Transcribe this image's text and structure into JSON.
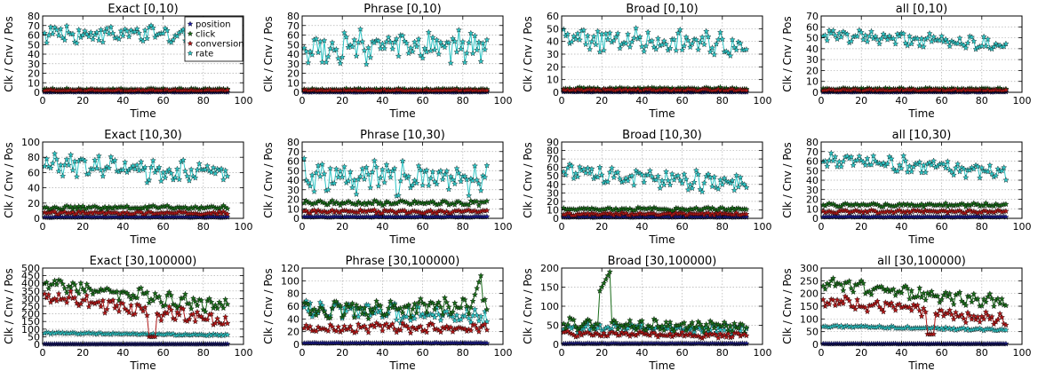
{
  "colors": {
    "position": "#1f1f9e",
    "click": "#1a6b1a",
    "conversion": "#b01818",
    "rate": "#2ec4c4"
  },
  "chart_data": [
    {
      "type": "line",
      "title": "Exact [0,10)",
      "xlabel": "Time",
      "ylabel": "Clk / Cnv / Pos",
      "xlim": [
        0,
        100
      ],
      "ylim": [
        0,
        80
      ],
      "xticks": [
        "0",
        "20",
        "40",
        "60",
        "80",
        "100"
      ],
      "yticks": [
        "0",
        "10",
        "20",
        "30",
        "40",
        "50",
        "60",
        "70",
        "80"
      ],
      "legend": {
        "location": "top-right",
        "entries": [
          "position",
          "click",
          "conversion",
          "rate"
        ]
      },
      "series": [
        {
          "name": "position",
          "base": 0.4,
          "amp": 0.2,
          "n": 92
        },
        {
          "name": "click",
          "base": 3,
          "amp": 0.8,
          "n": 92
        },
        {
          "name": "conversion",
          "base": 2,
          "amp": 0.6,
          "n": 92
        },
        {
          "name": "rate",
          "base": 62,
          "amp": 8,
          "n": 92,
          "trend": -3
        }
      ]
    },
    {
      "type": "line",
      "title": "Phrase [0,10)",
      "xlabel": "Time",
      "ylabel": "Clk / Cnv / Pos",
      "xlim": [
        0,
        100
      ],
      "ylim": [
        0,
        80
      ],
      "xticks": [
        "0",
        "20",
        "40",
        "60",
        "80",
        "100"
      ],
      "yticks": [
        "0",
        "10",
        "20",
        "30",
        "40",
        "50",
        "60",
        "70",
        "80"
      ],
      "series": [
        {
          "name": "position",
          "base": 0.4,
          "amp": 0.2,
          "n": 92
        },
        {
          "name": "click",
          "base": 3,
          "amp": 0.8,
          "n": 92
        },
        {
          "name": "conversion",
          "base": 2,
          "amp": 0.6,
          "n": 92
        },
        {
          "name": "rate",
          "base": 47,
          "amp": 14,
          "n": 92,
          "trend": 0
        }
      ]
    },
    {
      "type": "line",
      "title": "Broad [0,10)",
      "xlabel": "Time",
      "ylabel": "Clk / Cnv / Pos",
      "xlim": [
        0,
        100
      ],
      "ylim": [
        0,
        60
      ],
      "xticks": [
        "0",
        "20",
        "40",
        "60",
        "80",
        "100"
      ],
      "yticks": [
        "0",
        "10",
        "20",
        "30",
        "40",
        "50",
        "60"
      ],
      "series": [
        {
          "name": "position",
          "base": 0.4,
          "amp": 0.2,
          "n": 92
        },
        {
          "name": "click",
          "base": 2.8,
          "amp": 0.8,
          "n": 92
        },
        {
          "name": "conversion",
          "base": 1.8,
          "amp": 0.6,
          "n": 92
        },
        {
          "name": "rate",
          "base": 42,
          "amp": 8,
          "n": 92,
          "trend": -4
        }
      ]
    },
    {
      "type": "line",
      "title": "all [0,10)",
      "xlabel": "Time",
      "ylabel": "Clk / Cnv / Pos",
      "xlim": [
        0,
        100
      ],
      "ylim": [
        0,
        70
      ],
      "xticks": [
        "0",
        "20",
        "40",
        "60",
        "80",
        "100"
      ],
      "yticks": [
        "0",
        "10",
        "20",
        "30",
        "40",
        "50",
        "60",
        "70"
      ],
      "series": [
        {
          "name": "position",
          "base": 0.4,
          "amp": 0.2,
          "n": 92
        },
        {
          "name": "click",
          "base": 3,
          "amp": 0.8,
          "n": 92
        },
        {
          "name": "conversion",
          "base": 2,
          "amp": 0.6,
          "n": 92
        },
        {
          "name": "rate",
          "base": 52,
          "amp": 5,
          "n": 92,
          "trend": -8
        }
      ]
    },
    {
      "type": "line",
      "title": "Exact [10,30)",
      "xlabel": "Time",
      "ylabel": "Clk / Cnv / Pos",
      "xlim": [
        0,
        100
      ],
      "ylim": [
        0,
        100
      ],
      "xticks": [
        "0",
        "20",
        "40",
        "60",
        "80",
        "100"
      ],
      "yticks": [
        "0",
        "20",
        "40",
        "60",
        "80",
        "100"
      ],
      "series": [
        {
          "name": "position",
          "base": 1.5,
          "amp": 0.3,
          "n": 92
        },
        {
          "name": "click",
          "base": 14,
          "amp": 2,
          "n": 92
        },
        {
          "name": "conversion",
          "base": 7,
          "amp": 1.5,
          "n": 92
        },
        {
          "name": "rate",
          "base": 70,
          "amp": 12,
          "n": 92,
          "trend": -12
        }
      ]
    },
    {
      "type": "line",
      "title": "Phrase [10,30)",
      "xlabel": "Time",
      "ylabel": "Clk / Cnv / Pos",
      "xlim": [
        0,
        100
      ],
      "ylim": [
        0,
        80
      ],
      "xticks": [
        "0",
        "20",
        "40",
        "60",
        "80",
        "100"
      ],
      "yticks": [
        "0",
        "10",
        "20",
        "30",
        "40",
        "50",
        "60",
        "70",
        "80"
      ],
      "series": [
        {
          "name": "position",
          "base": 1.5,
          "amp": 0.3,
          "n": 92
        },
        {
          "name": "click",
          "base": 16,
          "amp": 2,
          "n": 92
        },
        {
          "name": "conversion",
          "base": 7,
          "amp": 1.5,
          "n": 92
        },
        {
          "name": "rate",
          "base": 45,
          "amp": 14,
          "n": 92,
          "trend": -5
        }
      ]
    },
    {
      "type": "line",
      "title": "Broad [10,30)",
      "xlabel": "Time",
      "ylabel": "Clk / Cnv / Pos",
      "xlim": [
        0,
        100
      ],
      "ylim": [
        0,
        90
      ],
      "xticks": [
        "0",
        "20",
        "40",
        "60",
        "80",
        "100"
      ],
      "yticks": [
        "0",
        "10",
        "20",
        "30",
        "40",
        "50",
        "60",
        "70",
        "80",
        "90"
      ],
      "series": [
        {
          "name": "position",
          "base": 1.5,
          "amp": 0.3,
          "n": 92
        },
        {
          "name": "click",
          "base": 11,
          "amp": 1.5,
          "n": 92
        },
        {
          "name": "conversion",
          "base": 5,
          "amp": 1.2,
          "n": 92
        },
        {
          "name": "rate",
          "base": 55,
          "amp": 9,
          "n": 92,
          "trend": -15
        }
      ]
    },
    {
      "type": "line",
      "title": "all [10,30)",
      "xlabel": "Time",
      "ylabel": "Clk / Cnv / Pos",
      "xlim": [
        0,
        100
      ],
      "ylim": [
        0,
        80
      ],
      "xticks": [
        "0",
        "20",
        "40",
        "60",
        "80",
        "100"
      ],
      "yticks": [
        "0",
        "10",
        "20",
        "30",
        "40",
        "50",
        "60",
        "70",
        "80"
      ],
      "series": [
        {
          "name": "position",
          "base": 1.5,
          "amp": 0.3,
          "n": 92
        },
        {
          "name": "click",
          "base": 14,
          "amp": 1.5,
          "n": 92
        },
        {
          "name": "conversion",
          "base": 7,
          "amp": 1.2,
          "n": 92
        },
        {
          "name": "rate",
          "base": 62,
          "amp": 7,
          "n": 92,
          "trend": -14
        }
      ]
    },
    {
      "type": "line",
      "title": "Exact [30,100000)",
      "xlabel": "Time",
      "ylabel": "Clk / Cnv / Pos",
      "xlim": [
        0,
        100
      ],
      "ylim": [
        0,
        500
      ],
      "xticks": [
        "0",
        "20",
        "40",
        "60",
        "80",
        "100"
      ],
      "yticks": [
        "0",
        "50",
        "100",
        "150",
        "200",
        "250",
        "300",
        "350",
        "400",
        "450",
        "500"
      ],
      "series": [
        {
          "name": "position",
          "base": 2,
          "amp": 0.5,
          "n": 92
        },
        {
          "name": "click",
          "base": 400,
          "amp": 40,
          "n": 92,
          "trend": -150
        },
        {
          "name": "conversion",
          "base": 320,
          "amp": 40,
          "n": 92,
          "trend": -180,
          "dip": [
            52,
            55,
            50
          ]
        },
        {
          "name": "rate",
          "base": 75,
          "amp": 5,
          "n": 92,
          "trend": -15
        }
      ]
    },
    {
      "type": "line",
      "title": "Phrase [30,100000)",
      "xlabel": "Time",
      "ylabel": "Clk / Cnv / Pos",
      "xlim": [
        0,
        100
      ],
      "ylim": [
        0,
        120
      ],
      "xticks": [
        "0",
        "20",
        "40",
        "60",
        "80",
        "100"
      ],
      "yticks": [
        "0",
        "20",
        "40",
        "60",
        "80",
        "100",
        "120"
      ],
      "series": [
        {
          "name": "position",
          "base": 2,
          "amp": 0.4,
          "n": 92
        },
        {
          "name": "click",
          "base": 52,
          "amp": 12,
          "n": 92,
          "trend": 10,
          "peak": [
            82,
            88,
            108
          ]
        },
        {
          "name": "conversion",
          "base": 26,
          "amp": 6,
          "n": 92,
          "trend": 0
        },
        {
          "name": "rate",
          "base": 55,
          "amp": 12,
          "n": 92,
          "trend": -10
        }
      ]
    },
    {
      "type": "line",
      "title": "Broad [30,100000)",
      "xlabel": "Time",
      "ylabel": "Clk / Cnv / Pos",
      "xlim": [
        0,
        100
      ],
      "ylim": [
        0,
        200
      ],
      "xticks": [
        "0",
        "20",
        "40",
        "60",
        "80",
        "100"
      ],
      "yticks": [
        "0",
        "50",
        "100",
        "150",
        "200"
      ],
      "series": [
        {
          "name": "position",
          "base": 2,
          "amp": 0.5,
          "n": 92
        },
        {
          "name": "click",
          "base": 55,
          "amp": 12,
          "n": 92,
          "trend": -10,
          "peak": [
            18,
            23,
            190
          ]
        },
        {
          "name": "conversion",
          "base": 28,
          "amp": 6,
          "n": 92,
          "trend": -5
        },
        {
          "name": "rate",
          "base": 45,
          "amp": 10,
          "n": 92,
          "trend": -5
        }
      ]
    },
    {
      "type": "line",
      "title": "all [30,100000)",
      "xlabel": "Time",
      "ylabel": "Clk / Cnv / Pos",
      "xlim": [
        0,
        100
      ],
      "ylim": [
        0,
        300
      ],
      "xticks": [
        "0",
        "20",
        "40",
        "60",
        "80",
        "100"
      ],
      "yticks": [
        "0",
        "50",
        "100",
        "150",
        "200",
        "250",
        "300"
      ],
      "series": [
        {
          "name": "position",
          "base": 2,
          "amp": 0.5,
          "n": 92
        },
        {
          "name": "click",
          "base": 235,
          "amp": 22,
          "n": 92,
          "trend": -70
        },
        {
          "name": "conversion",
          "base": 175,
          "amp": 20,
          "n": 92,
          "trend": -80,
          "dip": [
            52,
            55,
            40
          ]
        },
        {
          "name": "rate",
          "base": 72,
          "amp": 4,
          "n": 92,
          "trend": -15
        }
      ]
    }
  ]
}
